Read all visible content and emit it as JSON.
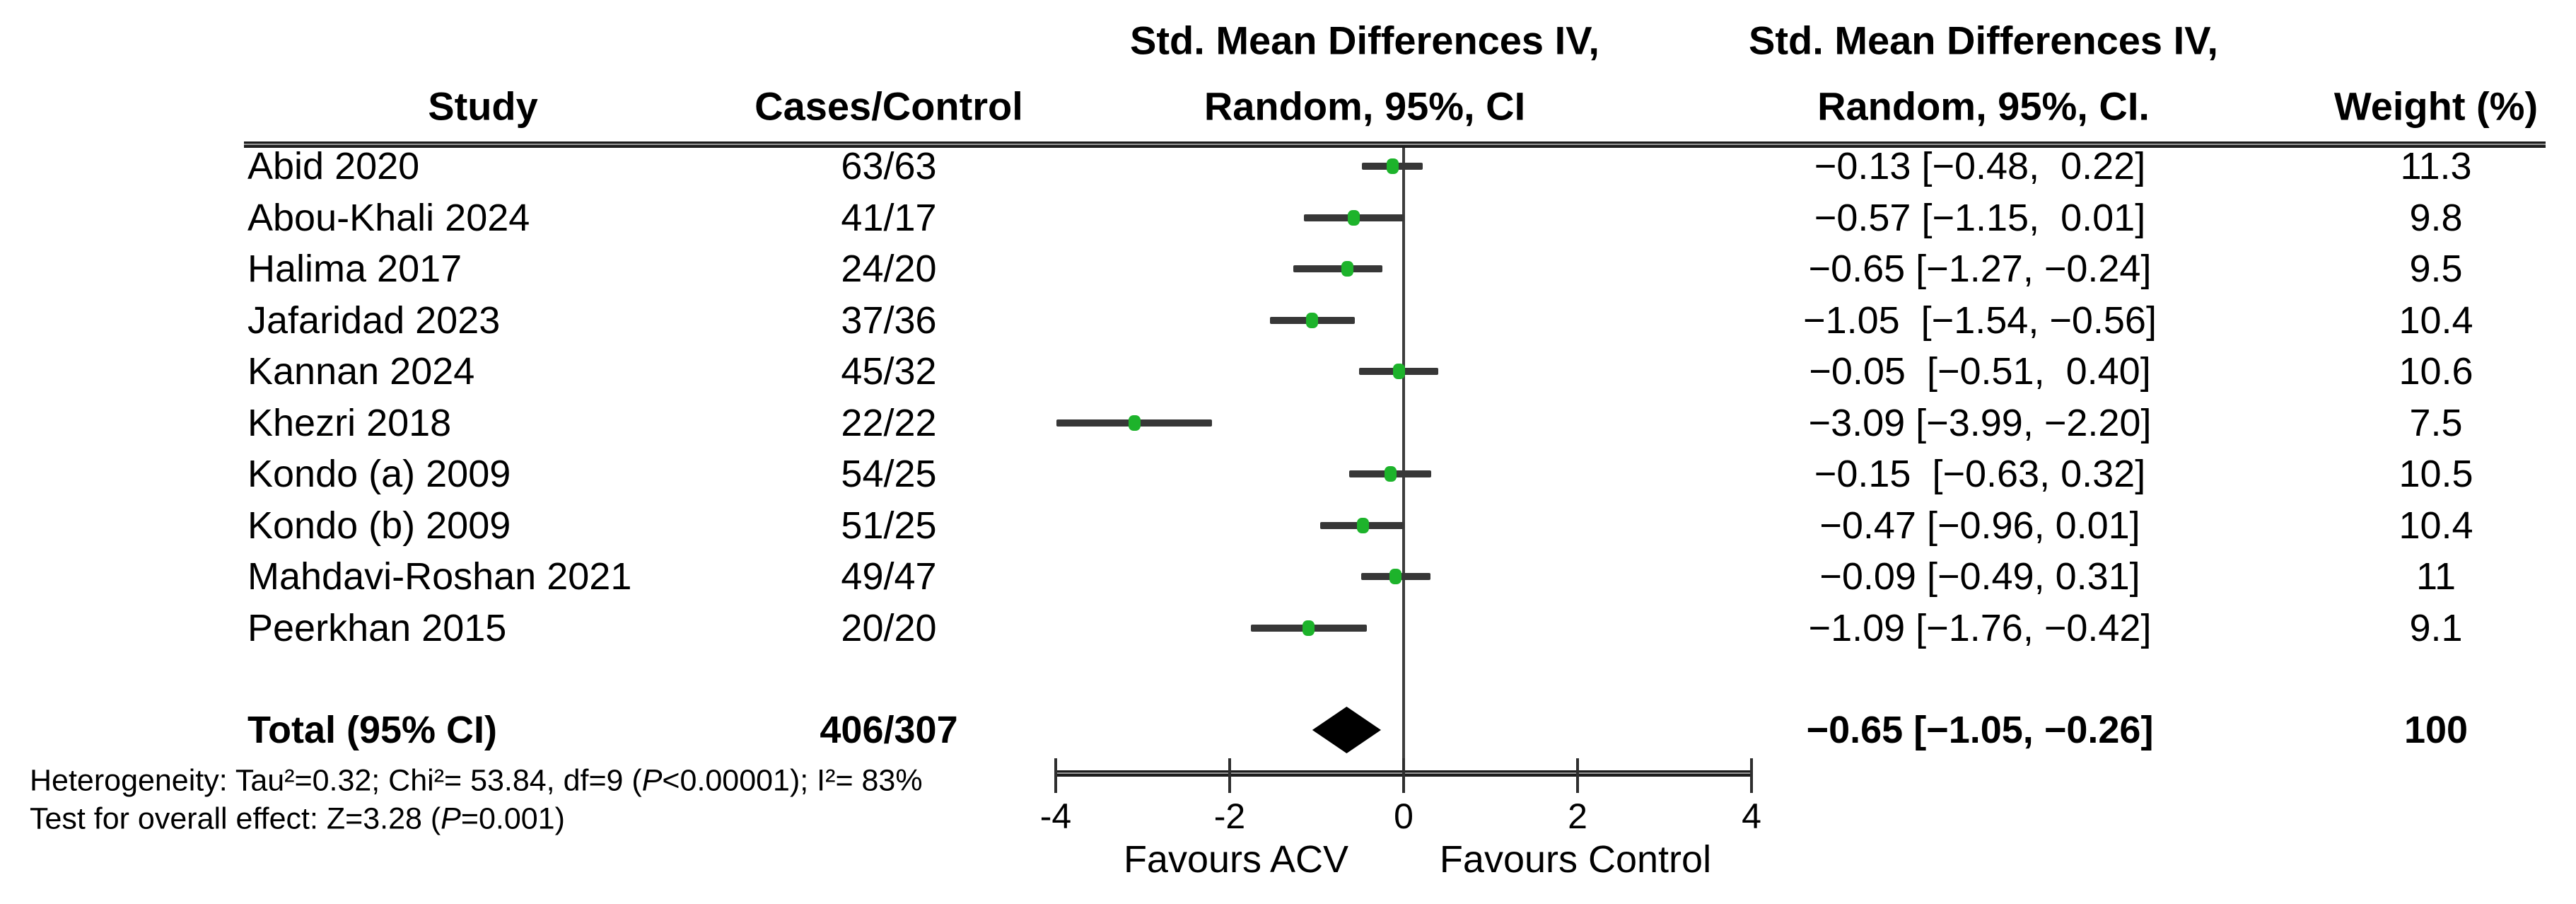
{
  "figure": {
    "headers": {
      "study": "Study",
      "cases": "Cases/Control",
      "plot_line1": "Std. Mean Differences IV,",
      "plot_line2": "Random, 95%, CI",
      "ci_line1": "Std. Mean Differences IV,",
      "ci_line2": "Random, 95%, CI.",
      "weight": "Weight (%)"
    },
    "rows": [
      {
        "study": "Abid 2020",
        "cases": "63/63",
        "est": -0.13,
        "lo": -0.48,
        "hi": 0.22,
        "ci": "−0.13 [−0.48,  0.22]",
        "weight": "11.3"
      },
      {
        "study": "Abou-Khali 2024",
        "cases": "41/17",
        "est": -0.57,
        "lo": -1.15,
        "hi": 0.01,
        "ci": "−0.57 [−1.15,  0.01]",
        "weight": "9.8"
      },
      {
        "study": "Halima 2017",
        "cases": "24/20",
        "est": -0.65,
        "lo": -1.27,
        "hi": -0.24,
        "ci": "−0.65 [−1.27, −0.24]",
        "weight": "9.5"
      },
      {
        "study": "Jafaridad 2023",
        "cases": "37/36",
        "est": -1.05,
        "lo": -1.54,
        "hi": -0.56,
        "ci": "−1.05  [−1.54, −0.56]",
        "weight": "10.4"
      },
      {
        "study": "Kannan 2024",
        "cases": "45/32",
        "est": -0.05,
        "lo": -0.51,
        "hi": 0.4,
        "ci": "−0.05  [−0.51,  0.40]",
        "weight": "10.6"
      },
      {
        "study": "Khezri 2018",
        "cases": "22/22",
        "est": -3.09,
        "lo": -3.99,
        "hi": -2.2,
        "ci": "−3.09 [−3.99, −2.20]",
        "weight": "7.5"
      },
      {
        "study": "Kondo (a) 2009",
        "cases": "54/25",
        "est": -0.15,
        "lo": -0.63,
        "hi": 0.32,
        "ci": "−0.15  [−0.63, 0.32]",
        "weight": "10.5"
      },
      {
        "study": "Kondo (b) 2009",
        "cases": "51/25",
        "est": -0.47,
        "lo": -0.96,
        "hi": 0.01,
        "ci": "−0.47 [−0.96, 0.01]",
        "weight": "10.4"
      },
      {
        "study": "Mahdavi-Roshan 2021",
        "cases": "49/47",
        "est": -0.09,
        "lo": -0.49,
        "hi": 0.31,
        "ci": "−0.09 [−0.49, 0.31]",
        "weight": "11"
      },
      {
        "study": "Peerkhan 2015",
        "cases": "20/20",
        "est": -1.09,
        "lo": -1.76,
        "hi": -0.42,
        "ci": "−1.09 [−1.76, −0.42]",
        "weight": "9.1"
      }
    ],
    "total": {
      "label": "Total (95% CI)",
      "cases": "406/307",
      "est": -0.65,
      "lo": -1.05,
      "hi": -0.26,
      "ci": "−0.65 [−1.05, −0.26]",
      "weight": "100"
    },
    "footnotes": {
      "line1": [
        {
          "t": "Heterogeneity: Tau²=0.32; Chi²= 53.84, df=9 ("
        },
        {
          "t": "P",
          "i": true
        },
        {
          "t": "<0.00001); I²= 83%"
        }
      ],
      "line2": [
        {
          "t": "Test for overall effect: Z=3.28 ("
        },
        {
          "t": "P",
          "i": true
        },
        {
          "t": "=0.001)"
        }
      ]
    },
    "axis": {
      "labels": [
        "-4",
        "-2",
        "0",
        "2",
        "4"
      ],
      "values": [
        -4,
        -2,
        0,
        2,
        4
      ],
      "favours_left": "Favours ACV",
      "favours_right": "Favours Control"
    },
    "colors": {
      "marker_green": "#1db32b",
      "whisker": "#373737",
      "diamond": "#000000",
      "axis": "#2a2a2a"
    }
  },
  "chart_data": {
    "type": "scatter",
    "subtype": "forest-plot",
    "title": "",
    "effect_measure": "Std. Mean Differences IV, Random, 95% CI",
    "categories": [
      "Abid 2020",
      "Abou-Khali 2024",
      "Halima 2017",
      "Jafaridad 2023",
      "Kannan 2024",
      "Khezri 2018",
      "Kondo (a) 2009",
      "Kondo (b) 2009",
      "Mahdavi-Roshan 2021",
      "Peerkhan 2015"
    ],
    "cases_control": [
      "63/63",
      "41/17",
      "24/20",
      "37/36",
      "45/32",
      "22/22",
      "54/25",
      "51/25",
      "49/47",
      "20/20"
    ],
    "series": [
      {
        "name": "Std. Mean Difference",
        "values": [
          -0.13,
          -0.57,
          -0.65,
          -1.05,
          -0.05,
          -3.09,
          -0.15,
          -0.47,
          -0.09,
          -1.09
        ],
        "ci_low": [
          -0.48,
          -1.15,
          -1.27,
          -1.54,
          -0.51,
          -3.99,
          -0.63,
          -0.96,
          -0.49,
          -1.76
        ],
        "ci_high": [
          0.22,
          0.01,
          -0.24,
          -0.56,
          0.4,
          -2.2,
          0.32,
          0.01,
          0.31,
          -0.42
        ]
      }
    ],
    "weights_pct": [
      11.3,
      9.8,
      9.5,
      10.4,
      10.6,
      7.5,
      10.5,
      10.4,
      11,
      9.1
    ],
    "total": {
      "label": "Total (95% CI)",
      "cases_control": "406/307",
      "value": -0.65,
      "ci_low": -1.05,
      "ci_high": -0.26,
      "weight_pct": 100
    },
    "xlim": [
      -4,
      4
    ],
    "xticks": [
      -4,
      -2,
      0,
      2,
      4
    ],
    "xlabel_left": "Favours ACV",
    "xlabel_right": "Favours Control",
    "heterogeneity": "Heterogeneity: Tau²=0.32; Chi²= 53.84, df=9 (P<0.00001); I²= 83%",
    "overall_effect_test": "Test for overall effect: Z=3.28 (P=0.001)",
    "grid": false,
    "legend": false
  }
}
